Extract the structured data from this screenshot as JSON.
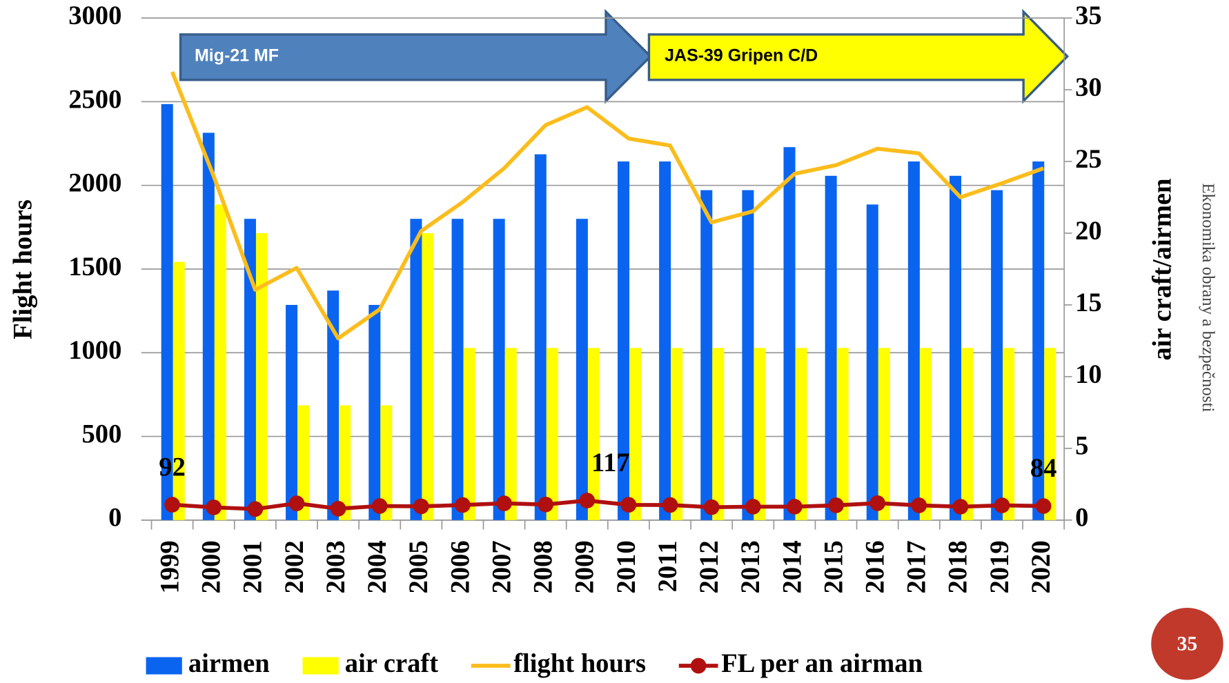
{
  "chart_data": {
    "type": "bar",
    "categories": [
      "1999",
      "2000",
      "2001",
      "2002",
      "2003",
      "2004",
      "2005",
      "2006",
      "2007",
      "2008",
      "2009",
      "2010",
      "2011",
      "2012",
      "2013",
      "2014",
      "2015",
      "2016",
      "2017",
      "2018",
      "2019",
      "2020"
    ],
    "series": [
      {
        "name": "airmen",
        "type": "bar",
        "axis": "y2",
        "color": "#0a64f0",
        "values": [
          29,
          27,
          21,
          15,
          16,
          15,
          21,
          21,
          21,
          25.5,
          21,
          25,
          25,
          23,
          23,
          26,
          24,
          22,
          25,
          24,
          23,
          25
        ]
      },
      {
        "name": "air craft",
        "type": "bar",
        "axis": "y2",
        "color": "#ffff00",
        "values": [
          18,
          22,
          20,
          8,
          8,
          8,
          20,
          12,
          12,
          12,
          12,
          12,
          12,
          12,
          12,
          12,
          12,
          12,
          12,
          12,
          12,
          12
        ]
      },
      {
        "name": "flight hours",
        "type": "line",
        "color": "#fbbd1c",
        "values": [
          2678,
          2055,
          1376,
          1507,
          1086,
          1259,
          1727,
          1900,
          2102,
          2360,
          2467,
          2280,
          2238,
          1779,
          1845,
          2069,
          2121,
          2219,
          2191,
          1929,
          2013,
          2102
        ]
      },
      {
        "name": "FL per an airman",
        "type": "line",
        "marker": true,
        "color": "#b01010",
        "values": [
          92,
          76,
          66,
          100,
          68,
          84,
          82,
          90,
          100,
          93,
          117,
          91,
          90,
          77,
          80,
          80,
          88,
          101,
          88,
          80,
          88,
          84
        ],
        "value_labels": [
          "92",
          null,
          null,
          null,
          null,
          null,
          null,
          null,
          null,
          null,
          "117",
          null,
          null,
          null,
          null,
          null,
          null,
          null,
          null,
          null,
          null,
          "84"
        ]
      }
    ],
    "ylabel": "Flight hours",
    "y2label": "air craft/airmen",
    "ylim": [
      0,
      3000
    ],
    "yticks": [
      0,
      500,
      1000,
      1500,
      2000,
      2500,
      3000
    ],
    "y2lim": [
      0,
      35
    ],
    "y2ticks": [
      0,
      5,
      10,
      15,
      20,
      25,
      30,
      35
    ],
    "grid": true,
    "legend": "bottom",
    "annotations": [
      "Mig-21 MF",
      "JAS-39 Gripen C/D"
    ]
  },
  "side_text": "Ekonomika obrany a bezpečnosti",
  "page_number": "35"
}
